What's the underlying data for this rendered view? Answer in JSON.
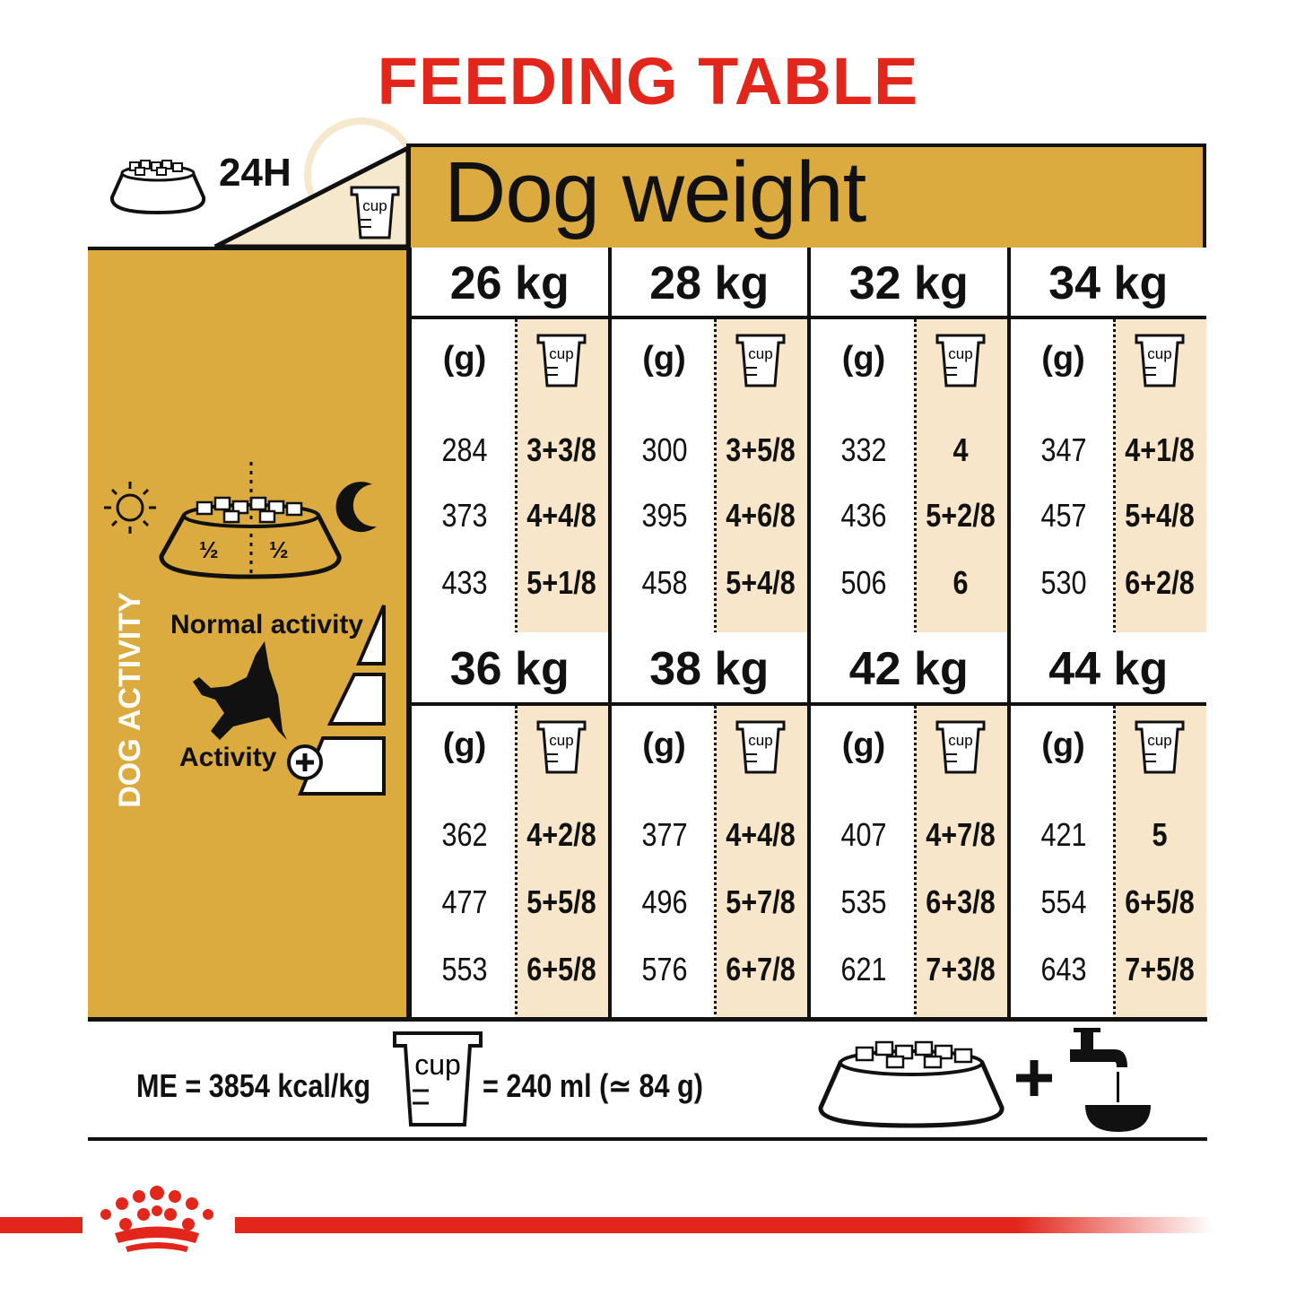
{
  "title": "FEEDING TABLE",
  "header": {
    "period": "24H",
    "dog_weight_label": "Dog weight",
    "cup_label": "cup"
  },
  "left_panel": {
    "fraction_left": "½",
    "fraction_right": "½",
    "activity_section": "DOG ACTIVITY",
    "normal_activity": "Normal activity",
    "activity_plus": "Activity"
  },
  "colors": {
    "title_red": "#e2261c",
    "gold": "#dcab3f",
    "beige": "#f7e6c9"
  },
  "table": {
    "grams_label": "(g)",
    "cup_label": "cup",
    "columns": [
      {
        "weight": "26 kg",
        "rows": [
          [
            "284",
            "3+3/8"
          ],
          [
            "373",
            "4+4/8"
          ],
          [
            "433",
            "5+1/8"
          ]
        ]
      },
      {
        "weight": "28 kg",
        "rows": [
          [
            "300",
            "3+5/8"
          ],
          [
            "395",
            "4+6/8"
          ],
          [
            "458",
            "5+4/8"
          ]
        ]
      },
      {
        "weight": "32 kg",
        "rows": [
          [
            "332",
            "4"
          ],
          [
            "436",
            "5+2/8"
          ],
          [
            "506",
            "6"
          ]
        ]
      },
      {
        "weight": "34 kg",
        "rows": [
          [
            "347",
            "4+1/8"
          ],
          [
            "457",
            "5+4/8"
          ],
          [
            "530",
            "6+2/8"
          ]
        ]
      },
      {
        "weight": "36 kg",
        "rows": [
          [
            "362",
            "4+2/8"
          ],
          [
            "477",
            "5+5/8"
          ],
          [
            "553",
            "6+5/8"
          ]
        ]
      },
      {
        "weight": "38 kg",
        "rows": [
          [
            "377",
            "4+4/8"
          ],
          [
            "496",
            "5+7/8"
          ],
          [
            "576",
            "6+7/8"
          ]
        ]
      },
      {
        "weight": "42 kg",
        "rows": [
          [
            "407",
            "4+7/8"
          ],
          [
            "535",
            "6+3/8"
          ],
          [
            "621",
            "7+3/8"
          ]
        ]
      },
      {
        "weight": "44 kg",
        "rows": [
          [
            "421",
            "5"
          ],
          [
            "554",
            "6+5/8"
          ],
          [
            "643",
            "7+5/8"
          ]
        ]
      }
    ]
  },
  "footer": {
    "energy": "ME = 3854 kcal/kg",
    "cup_label": "cup",
    "cup_equivalence": "= 240 ml (≃ 84 g)"
  },
  "icons": [
    "food-bowl-icon",
    "clock-icon",
    "cup-icon",
    "sun-icon",
    "moon-icon",
    "dog-icon",
    "plus-circle-icon",
    "water-tap-icon",
    "royal-canin-crown-logo"
  ]
}
